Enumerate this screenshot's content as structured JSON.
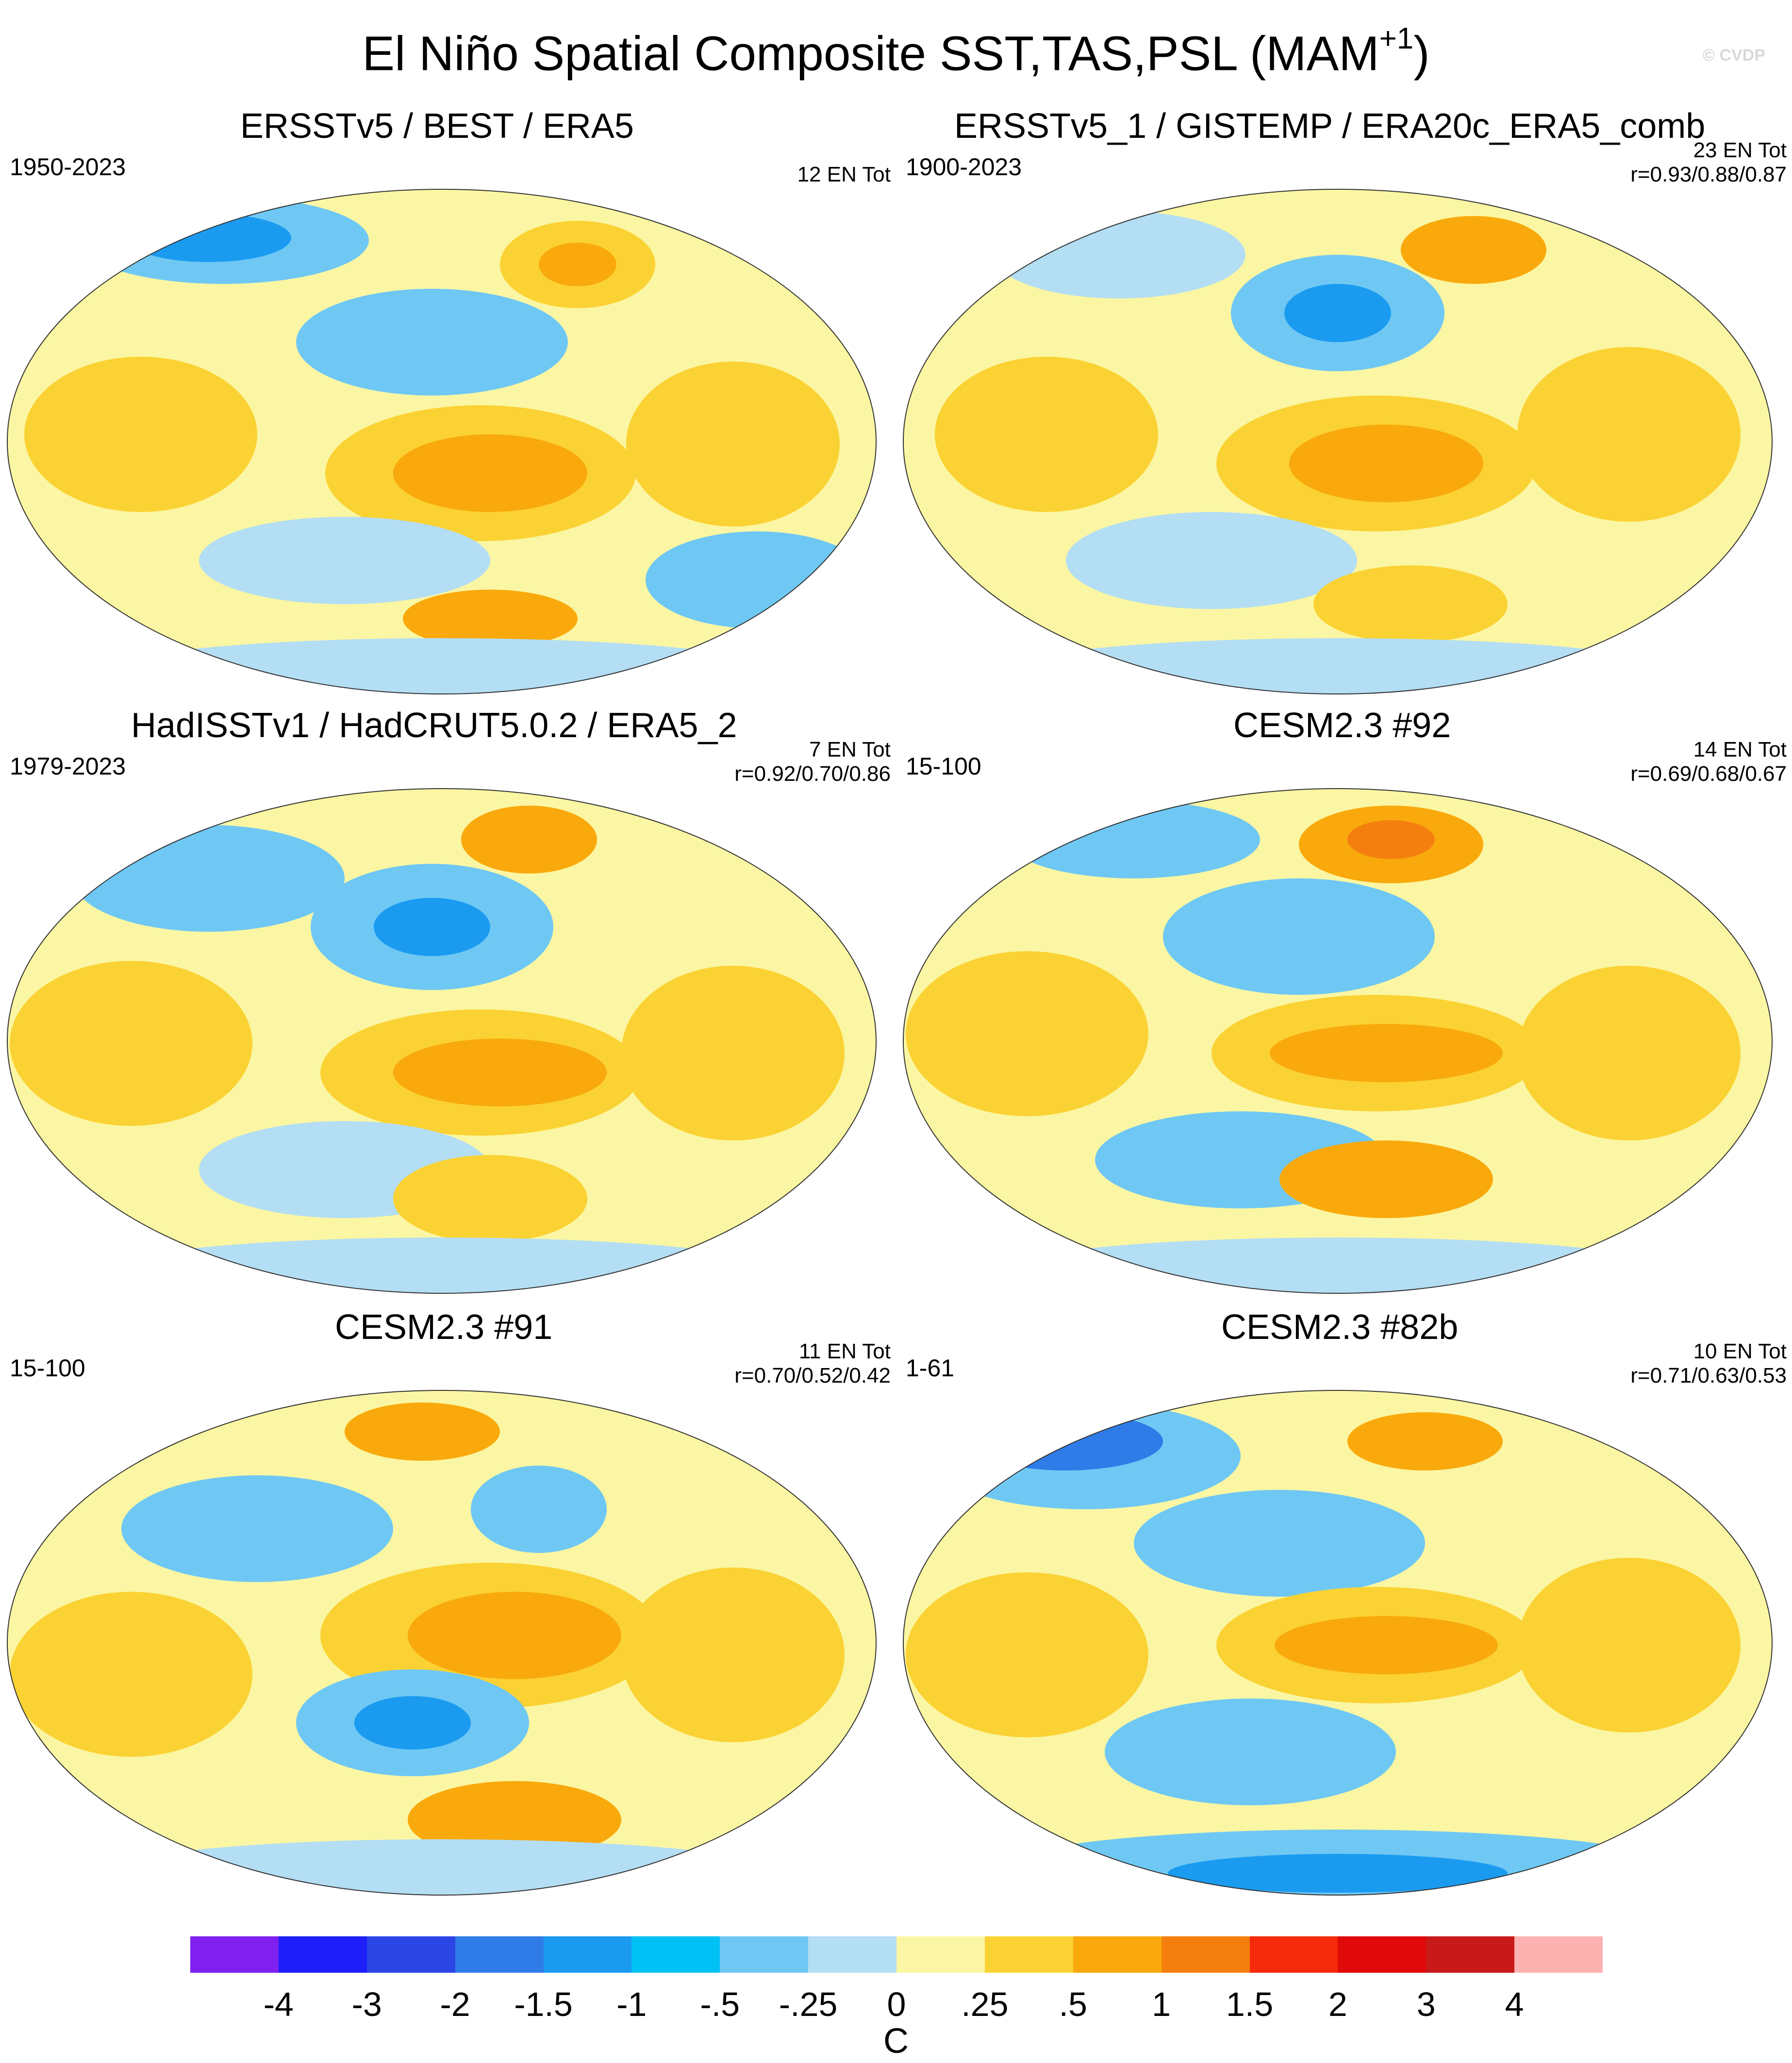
{
  "title": {
    "text": "El Niño Spatial Composite SST,TAS,PSL (MAM",
    "superscript": "+1",
    "close": ")"
  },
  "watermark": "© CVDP",
  "panels": [
    {
      "title": "ERSSTv5 / BEST / ERA5",
      "period": "1950-2023",
      "count": "12 EN Tot",
      "corr": ""
    },
    {
      "title": "ERSSTv5_1 / GISTEMP / ERA20c_ERA5_comb",
      "period": "1900-2023",
      "count": "23 EN Tot",
      "corr": "r=0.93/0.88/0.87"
    },
    {
      "title": "HadISSTv1 / HadCRUT5.0.2 / ERA5_2",
      "period": "1979-2023",
      "count": "7 EN Tot",
      "corr": "r=0.92/0.70/0.86"
    },
    {
      "title": "CESM2.3 #92",
      "period": "15-100",
      "count": "14 EN Tot",
      "corr": "r=0.69/0.68/0.67"
    },
    {
      "title": "CESM2.3 #91",
      "period": "15-100",
      "count": "11 EN Tot",
      "corr": "r=0.70/0.52/0.42"
    },
    {
      "title": "CESM2.3 #82b",
      "period": "1-61",
      "count": "10 EN Tot",
      "corr": "r=0.71/0.63/0.53"
    }
  ],
  "colorbar": {
    "colors": [
      "#7f1ff0",
      "#1e1efa",
      "#2c46e6",
      "#2f7be8",
      "#1a9bf0",
      "#00c1f5",
      "#6fc8f4",
      "#b4def4",
      "#fbf6a3",
      "#fbd233",
      "#f9a90c",
      "#f47f0f",
      "#f52a0a",
      "#e00a0a",
      "#c91a1a",
      "#fdb2b2"
    ],
    "labels": [
      "-4",
      "-3",
      "-2",
      "-1.5",
      "-1",
      "-.5",
      "-.25",
      "0",
      ".25",
      ".5",
      "1",
      "1.5",
      "2",
      "3",
      "4"
    ],
    "unit": "C"
  }
}
